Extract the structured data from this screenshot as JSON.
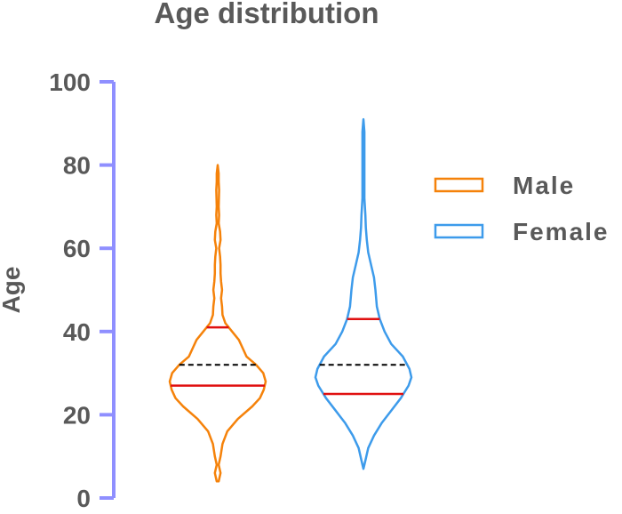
{
  "chart_data": {
    "type": "violin",
    "title": "Age distribution",
    "ylabel": "Age",
    "ylim": [
      0,
      100
    ],
    "yticks": [
      0,
      20,
      40,
      60,
      80,
      100
    ],
    "grid": false,
    "legend_position": "right",
    "series": [
      {
        "name": "Male",
        "color": "#F5820A",
        "min": 4,
        "max": 80,
        "median": 32,
        "q1": 27,
        "q3": 41,
        "density": [
          [
            4,
            0.02
          ],
          [
            6,
            0.06
          ],
          [
            8,
            0.02
          ],
          [
            10,
            0.06
          ],
          [
            13,
            0.1
          ],
          [
            16,
            0.2
          ],
          [
            19,
            0.42
          ],
          [
            22,
            0.72
          ],
          [
            24,
            0.88
          ],
          [
            26,
            0.96
          ],
          [
            28,
            1.0
          ],
          [
            30,
            0.95
          ],
          [
            32,
            0.8
          ],
          [
            34,
            0.6
          ],
          [
            36,
            0.52
          ],
          [
            38,
            0.44
          ],
          [
            40,
            0.3
          ],
          [
            42,
            0.16
          ],
          [
            44,
            0.1
          ],
          [
            46,
            0.09
          ],
          [
            48,
            0.07
          ],
          [
            50,
            0.09
          ],
          [
            52,
            0.07
          ],
          [
            54,
            0.06
          ],
          [
            56,
            0.06
          ],
          [
            58,
            0.05
          ],
          [
            60,
            0.03
          ],
          [
            62,
            0.06
          ],
          [
            64,
            0.05
          ],
          [
            66,
            0.02
          ],
          [
            68,
            0.03
          ],
          [
            70,
            0.02
          ],
          [
            74,
            0.03
          ],
          [
            76,
            0.02
          ],
          [
            78,
            0.02
          ],
          [
            80,
            0.0
          ]
        ]
      },
      {
        "name": "Female",
        "color": "#3D9BEB",
        "min": 7,
        "max": 91,
        "median": 32,
        "q1": 25,
        "q3": 43,
        "density": [
          [
            7,
            0.0
          ],
          [
            9,
            0.04
          ],
          [
            12,
            0.1
          ],
          [
            15,
            0.22
          ],
          [
            18,
            0.38
          ],
          [
            21,
            0.58
          ],
          [
            24,
            0.78
          ],
          [
            27,
            0.94
          ],
          [
            29,
            1.0
          ],
          [
            31,
            0.96
          ],
          [
            34,
            0.82
          ],
          [
            37,
            0.58
          ],
          [
            40,
            0.44
          ],
          [
            43,
            0.34
          ],
          [
            46,
            0.28
          ],
          [
            50,
            0.25
          ],
          [
            53,
            0.22
          ],
          [
            56,
            0.16
          ],
          [
            59,
            0.1
          ],
          [
            62,
            0.07
          ],
          [
            65,
            0.05
          ],
          [
            68,
            0.04
          ],
          [
            72,
            0.02
          ],
          [
            75,
            0.02
          ],
          [
            80,
            0.02
          ],
          [
            85,
            0.02
          ],
          [
            88,
            0.02
          ],
          [
            91,
            0.0
          ]
        ]
      }
    ]
  }
}
